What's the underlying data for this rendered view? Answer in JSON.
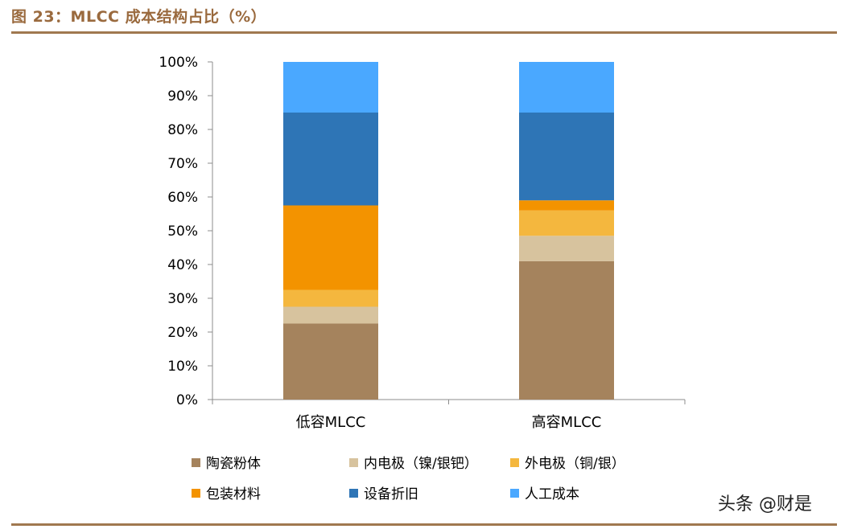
{
  "header": {
    "title": "图 23：MLCC 成本结构占比（%）"
  },
  "watermark": "头条 @财是",
  "chart_data": {
    "type": "bar",
    "stacked": true,
    "categories": [
      "低容MLCC",
      "高容MLCC"
    ],
    "y_ticks": [
      "0%",
      "10%",
      "20%",
      "30%",
      "40%",
      "50%",
      "60%",
      "70%",
      "80%",
      "90%",
      "100%"
    ],
    "ylim": [
      0,
      100
    ],
    "legend_position": "bottom",
    "grid": false,
    "series": [
      {
        "name": "陶瓷粉体",
        "color": "#A5835D",
        "values": [
          22.5,
          41
        ]
      },
      {
        "name": "内电极（镍/银钯）",
        "color": "#D7C39E",
        "values": [
          5,
          7.5
        ]
      },
      {
        "name": "外电极（铜/银）",
        "color": "#F4B73E",
        "values": [
          5,
          7.5
        ]
      },
      {
        "name": "包装材料",
        "color": "#F39300",
        "values": [
          25,
          3
        ]
      },
      {
        "name": "设备折旧",
        "color": "#2E75B6",
        "values": [
          27.5,
          26
        ]
      },
      {
        "name": "人工成本",
        "color": "#4AA8FF",
        "values": [
          15,
          15
        ]
      }
    ]
  }
}
